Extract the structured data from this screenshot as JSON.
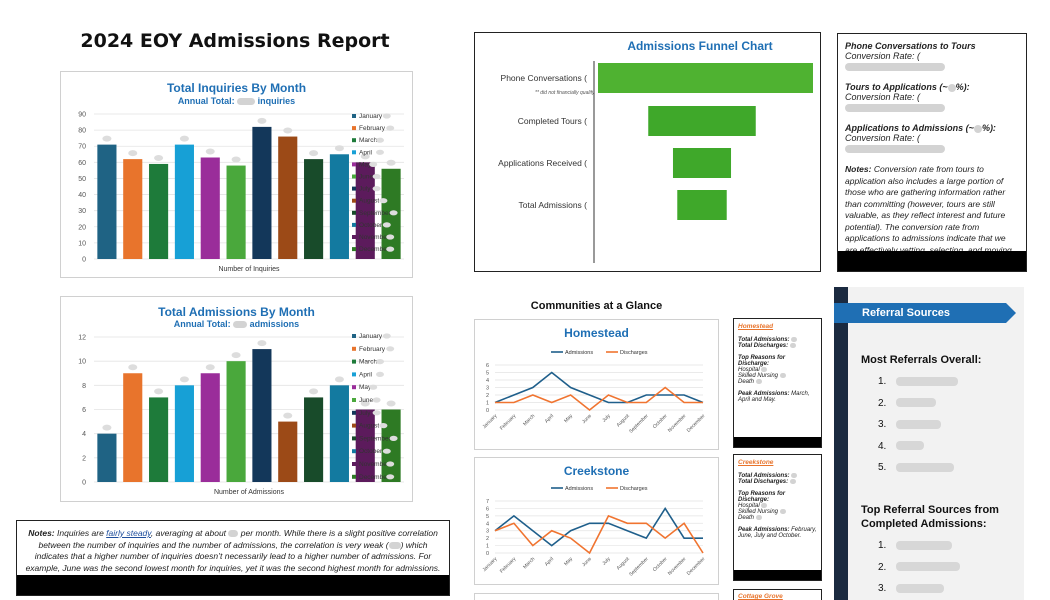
{
  "report_title": "2024 EOY Admissions Report",
  "months": [
    "January",
    "February",
    "March",
    "April",
    "May",
    "June",
    "July",
    "August",
    "September",
    "October",
    "November",
    "December"
  ],
  "month_colors": [
    "#1f6384",
    "#e8742c",
    "#1e7b3a",
    "#17a0d6",
    "#9a2d9a",
    "#4aa83c",
    "#13375a",
    "#9c4a17",
    "#184b2a",
    "#137aa0",
    "#5c1b5c",
    "#2e7a24"
  ],
  "inquiries": {
    "title": "Total Inquiries By Month",
    "subtitle": "Annual Total:",
    "subtitle_unit": "inquiries",
    "xlabel": "Number of Inquiries"
  },
  "admissions": {
    "title": "Total Admissions By Month",
    "subtitle": "Annual Total:",
    "subtitle_unit": "admissions",
    "xlabel": "Number of Admissions"
  },
  "funnel": {
    "title": "Admissions Funnel Chart",
    "note": "did not financially qualify"
  },
  "conversions": {
    "c1_label": "Phone Conversations to Tours",
    "c1_val": "Conversion Rate: (",
    "c2_label": "Tours to Applications (~",
    "c2_label_end": "%):",
    "c2_val": "Conversion Rate: (",
    "c3_label": "Applications to Admissions (~",
    "c3_label_end": "%):",
    "c3_val": "Conversion Rate: (",
    "notes_label": "Notes:",
    "notes_text": "Conversion rate from tours to application also includes a large portion of those who are gathering information rather than committing (however, tours are still valuable, as they reflect interest and future potential). The conversion rate from applications to admissions indicate that we are effectively vetting, selecting, and moving forward with well-qualified candidates."
  },
  "bottom_notes": {
    "label": "Notes:",
    "p1": "Inquiries are",
    "link": "fairly steady",
    "p2": ", averaging at about",
    "p3": "per month. While there is a slight positive correlation between the number of inquiries and the number of admissions, the correlation is very weak (",
    "p4": ") which indicates that a higher number of inquiries doesn’t necessarily lead to a higher number of admissions. For example, June was the second lowest month for inquiries, yet it was the second highest month for admissions."
  },
  "communities": {
    "title": "Communities at a Glance",
    "legend_a": "Admissions",
    "legend_d": "Discharges",
    "homestead": {
      "name": "Homestead",
      "side_title": "Homestead",
      "adm": "Total Admissions:",
      "dis": "Total Discharges:",
      "reasons": "Top Reasons for Discharge:",
      "r1": "Hospital",
      "r2": "Skilled Nursing",
      "r3": "Death",
      "peak_label": "Peak Admissions:",
      "peak": "March, April and May."
    },
    "creekstone": {
      "name": "Creekstone",
      "side_title": "Creekstone",
      "adm": "Total Admissions:",
      "dis": "Total Discharges:",
      "reasons": "Top Reasons for Discharge:",
      "r1": "Hospital",
      "r2": "Skilled Nursing",
      "r3": "Death",
      "peak_label": "Peak Admissions:",
      "peak": "February, June, July and October."
    },
    "cottage": {
      "side_title": "Cottage Grove"
    }
  },
  "referrals": {
    "title": "Referral Sources",
    "h1": "Most Referrals Overall:",
    "h2": "Top Referral Sources from Completed Admissions:"
  },
  "chart_data": [
    {
      "type": "bar",
      "title": "Total Inquiries By Month",
      "xlabel": "Number of Inquiries",
      "categories": [
        "January",
        "February",
        "March",
        "April",
        "May",
        "June",
        "July",
        "August",
        "September",
        "October",
        "November",
        "December"
      ],
      "values": [
        71,
        62,
        59,
        71,
        63,
        58,
        82,
        76,
        62,
        65,
        60,
        56
      ],
      "ylim": [
        0,
        90
      ],
      "yticks": [
        0,
        10,
        20,
        30,
        40,
        50,
        60,
        70,
        80,
        90
      ],
      "legend": "right",
      "grid": true
    },
    {
      "type": "bar",
      "title": "Total Admissions By Month",
      "xlabel": "Number of Admissions",
      "categories": [
        "January",
        "February",
        "March",
        "April",
        "May",
        "June",
        "July",
        "August",
        "September",
        "October",
        "November",
        "December"
      ],
      "values": [
        4,
        9,
        7,
        8,
        9,
        10,
        11,
        5,
        7,
        8,
        6,
        6
      ],
      "ylim": [
        0,
        12
      ],
      "yticks": [
        0,
        2,
        4,
        6,
        8,
        10,
        12
      ],
      "legend": "right",
      "grid": true
    },
    {
      "type": "bar",
      "orientation": "horizontal",
      "title": "Admissions Funnel Chart",
      "categories": [
        "Phone Conversations (",
        "Completed Tours (",
        "Applications Received (",
        "Total Admissions ("
      ],
      "values": [
        100,
        50,
        27,
        23
      ]
    },
    {
      "type": "line",
      "title": "Homestead",
      "categories": [
        "January",
        "February",
        "March",
        "April",
        "May",
        "June",
        "July",
        "August",
        "September",
        "October",
        "November",
        "December"
      ],
      "ylim": [
        0,
        6
      ],
      "yticks": [
        0,
        1,
        2,
        3,
        4,
        5,
        6
      ],
      "series": [
        {
          "name": "Admissions",
          "values": [
            1,
            2,
            3,
            5,
            3,
            2,
            1,
            1,
            2,
            2,
            2,
            1
          ]
        },
        {
          "name": "Discharges",
          "values": [
            1,
            1,
            2,
            1,
            2,
            0,
            2,
            1,
            1,
            3,
            1,
            1
          ]
        }
      ],
      "legend": "top",
      "grid": true
    },
    {
      "type": "line",
      "title": "Creekstone",
      "categories": [
        "January",
        "February",
        "March",
        "April",
        "May",
        "June",
        "July",
        "August",
        "September",
        "October",
        "November",
        "December"
      ],
      "ylim": [
        0,
        7
      ],
      "yticks": [
        0,
        1,
        2,
        3,
        4,
        5,
        6,
        7
      ],
      "series": [
        {
          "name": "Admissions",
          "values": [
            3,
            5,
            3,
            1,
            3,
            4,
            4,
            3,
            2,
            6,
            2,
            2
          ]
        },
        {
          "name": "Discharges",
          "values": [
            3,
            4,
            1,
            3,
            2,
            0,
            5,
            4,
            4,
            2,
            4,
            0
          ]
        }
      ],
      "legend": "top",
      "grid": true
    }
  ]
}
